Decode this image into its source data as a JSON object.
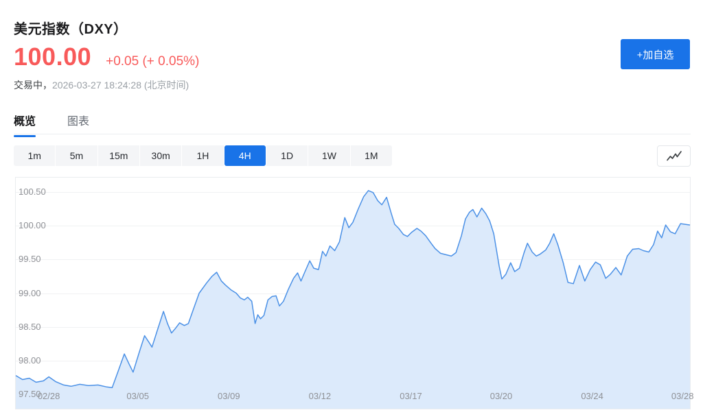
{
  "header": {
    "title": "美元指数（DXY）",
    "price": "100.00",
    "change": "+0.05 (+ 0.05%)",
    "status_prefix": "交易中，",
    "timestamp": "2026-03-27 18:24:28 (北京时间)",
    "add_button_label": "+加自选"
  },
  "tabs": [
    {
      "name": "overview",
      "label": "概览",
      "active": true
    },
    {
      "name": "chart",
      "label": "图表",
      "active": false
    }
  ],
  "intervals": {
    "options": [
      "1m",
      "5m",
      "15m",
      "30m",
      "1H",
      "4H",
      "1D",
      "1W",
      "1M"
    ],
    "active": "4H"
  },
  "toolbar": {
    "chart_style_icon": "trend-line-icon"
  },
  "colors": {
    "accent_blue": "#1973E8",
    "up_down_red": "#F85A5A",
    "line_blue": "#4A90E6",
    "area_fill": "#DCEAFB",
    "grid": "#F0F1F3",
    "axis_text": "#8E9095"
  },
  "chart_data": {
    "type": "area",
    "title": "美元指数（DXY） 4H",
    "xlabel": "",
    "ylabel": "",
    "grid": true,
    "legend": "none",
    "ylim": [
      97.288,
      100.712
    ],
    "y_ticks": [
      "100.50",
      "100.00",
      "99.50",
      "99.00",
      "98.50",
      "98.00",
      "97.50"
    ],
    "x_ticks": [
      {
        "label": "02/28",
        "pos": 0.049
      },
      {
        "label": "03/05",
        "pos": 0.181
      },
      {
        "label": "03/09",
        "pos": 0.316
      },
      {
        "label": "03/12",
        "pos": 0.451
      },
      {
        "label": "03/17",
        "pos": 0.586
      },
      {
        "label": "03/20",
        "pos": 0.72
      },
      {
        "label": "03/24",
        "pos": 0.855
      },
      {
        "label": "03/28",
        "pos": 0.989
      }
    ],
    "points": [
      [
        0.0,
        97.78
      ],
      [
        0.01,
        97.72
      ],
      [
        0.02,
        97.74
      ],
      [
        0.03,
        97.68
      ],
      [
        0.041,
        97.7
      ],
      [
        0.049,
        97.76
      ],
      [
        0.059,
        97.69
      ],
      [
        0.071,
        97.64
      ],
      [
        0.082,
        97.62
      ],
      [
        0.095,
        97.65
      ],
      [
        0.108,
        97.63
      ],
      [
        0.122,
        97.64
      ],
      [
        0.135,
        97.61
      ],
      [
        0.143,
        97.6
      ],
      [
        0.152,
        97.85
      ],
      [
        0.161,
        98.1
      ],
      [
        0.168,
        97.95
      ],
      [
        0.174,
        97.83
      ],
      [
        0.183,
        98.12
      ],
      [
        0.191,
        98.37
      ],
      [
        0.197,
        98.28
      ],
      [
        0.202,
        98.2
      ],
      [
        0.21,
        98.45
      ],
      [
        0.219,
        98.73
      ],
      [
        0.225,
        98.55
      ],
      [
        0.231,
        98.41
      ],
      [
        0.237,
        98.48
      ],
      [
        0.243,
        98.56
      ],
      [
        0.25,
        98.52
      ],
      [
        0.256,
        98.55
      ],
      [
        0.263,
        98.75
      ],
      [
        0.272,
        99.0
      ],
      [
        0.283,
        99.15
      ],
      [
        0.291,
        99.25
      ],
      [
        0.298,
        99.31
      ],
      [
        0.305,
        99.18
      ],
      [
        0.311,
        99.12
      ],
      [
        0.319,
        99.05
      ],
      [
        0.327,
        99.0
      ],
      [
        0.333,
        98.93
      ],
      [
        0.339,
        98.9
      ],
      [
        0.344,
        98.94
      ],
      [
        0.35,
        98.88
      ],
      [
        0.355,
        98.55
      ],
      [
        0.359,
        98.68
      ],
      [
        0.363,
        98.62
      ],
      [
        0.368,
        98.67
      ],
      [
        0.374,
        98.9
      ],
      [
        0.38,
        98.95
      ],
      [
        0.386,
        98.96
      ],
      [
        0.391,
        98.81
      ],
      [
        0.397,
        98.88
      ],
      [
        0.404,
        99.05
      ],
      [
        0.412,
        99.22
      ],
      [
        0.418,
        99.3
      ],
      [
        0.423,
        99.18
      ],
      [
        0.429,
        99.32
      ],
      [
        0.436,
        99.48
      ],
      [
        0.442,
        99.37
      ],
      [
        0.449,
        99.35
      ],
      [
        0.455,
        99.62
      ],
      [
        0.46,
        99.55
      ],
      [
        0.466,
        99.7
      ],
      [
        0.473,
        99.63
      ],
      [
        0.48,
        99.76
      ],
      [
        0.488,
        100.12
      ],
      [
        0.494,
        99.97
      ],
      [
        0.5,
        100.05
      ],
      [
        0.508,
        100.25
      ],
      [
        0.516,
        100.43
      ],
      [
        0.523,
        100.52
      ],
      [
        0.53,
        100.49
      ],
      [
        0.537,
        100.37
      ],
      [
        0.543,
        100.31
      ],
      [
        0.55,
        100.42
      ],
      [
        0.557,
        100.18
      ],
      [
        0.562,
        100.02
      ],
      [
        0.568,
        99.96
      ],
      [
        0.575,
        99.87
      ],
      [
        0.581,
        99.84
      ],
      [
        0.587,
        99.9
      ],
      [
        0.595,
        99.96
      ],
      [
        0.601,
        99.92
      ],
      [
        0.608,
        99.85
      ],
      [
        0.616,
        99.74
      ],
      [
        0.622,
        99.66
      ],
      [
        0.63,
        99.59
      ],
      [
        0.638,
        99.57
      ],
      [
        0.646,
        99.55
      ],
      [
        0.653,
        99.6
      ],
      [
        0.661,
        99.85
      ],
      [
        0.667,
        100.1
      ],
      [
        0.673,
        100.2
      ],
      [
        0.678,
        100.24
      ],
      [
        0.684,
        100.13
      ],
      [
        0.691,
        100.26
      ],
      [
        0.697,
        100.18
      ],
      [
        0.703,
        100.07
      ],
      [
        0.709,
        99.88
      ],
      [
        0.717,
        99.4
      ],
      [
        0.721,
        99.21
      ],
      [
        0.727,
        99.28
      ],
      [
        0.734,
        99.45
      ],
      [
        0.74,
        99.32
      ],
      [
        0.747,
        99.37
      ],
      [
        0.754,
        99.6
      ],
      [
        0.759,
        99.74
      ],
      [
        0.766,
        99.61
      ],
      [
        0.772,
        99.55
      ],
      [
        0.778,
        99.58
      ],
      [
        0.786,
        99.64
      ],
      [
        0.792,
        99.74
      ],
      [
        0.798,
        99.88
      ],
      [
        0.804,
        99.72
      ],
      [
        0.812,
        99.45
      ],
      [
        0.819,
        99.16
      ],
      [
        0.827,
        99.14
      ],
      [
        0.836,
        99.41
      ],
      [
        0.844,
        99.18
      ],
      [
        0.852,
        99.35
      ],
      [
        0.86,
        99.46
      ],
      [
        0.867,
        99.42
      ],
      [
        0.875,
        99.22
      ],
      [
        0.882,
        99.28
      ],
      [
        0.89,
        99.38
      ],
      [
        0.898,
        99.27
      ],
      [
        0.907,
        99.55
      ],
      [
        0.915,
        99.65
      ],
      [
        0.924,
        99.66
      ],
      [
        0.931,
        99.63
      ],
      [
        0.939,
        99.61
      ],
      [
        0.946,
        99.72
      ],
      [
        0.952,
        99.92
      ],
      [
        0.958,
        99.82
      ],
      [
        0.964,
        100.01
      ],
      [
        0.971,
        99.91
      ],
      [
        0.978,
        99.88
      ],
      [
        0.986,
        100.03
      ],
      [
        0.993,
        100.02
      ],
      [
        1.0,
        100.01
      ]
    ]
  }
}
